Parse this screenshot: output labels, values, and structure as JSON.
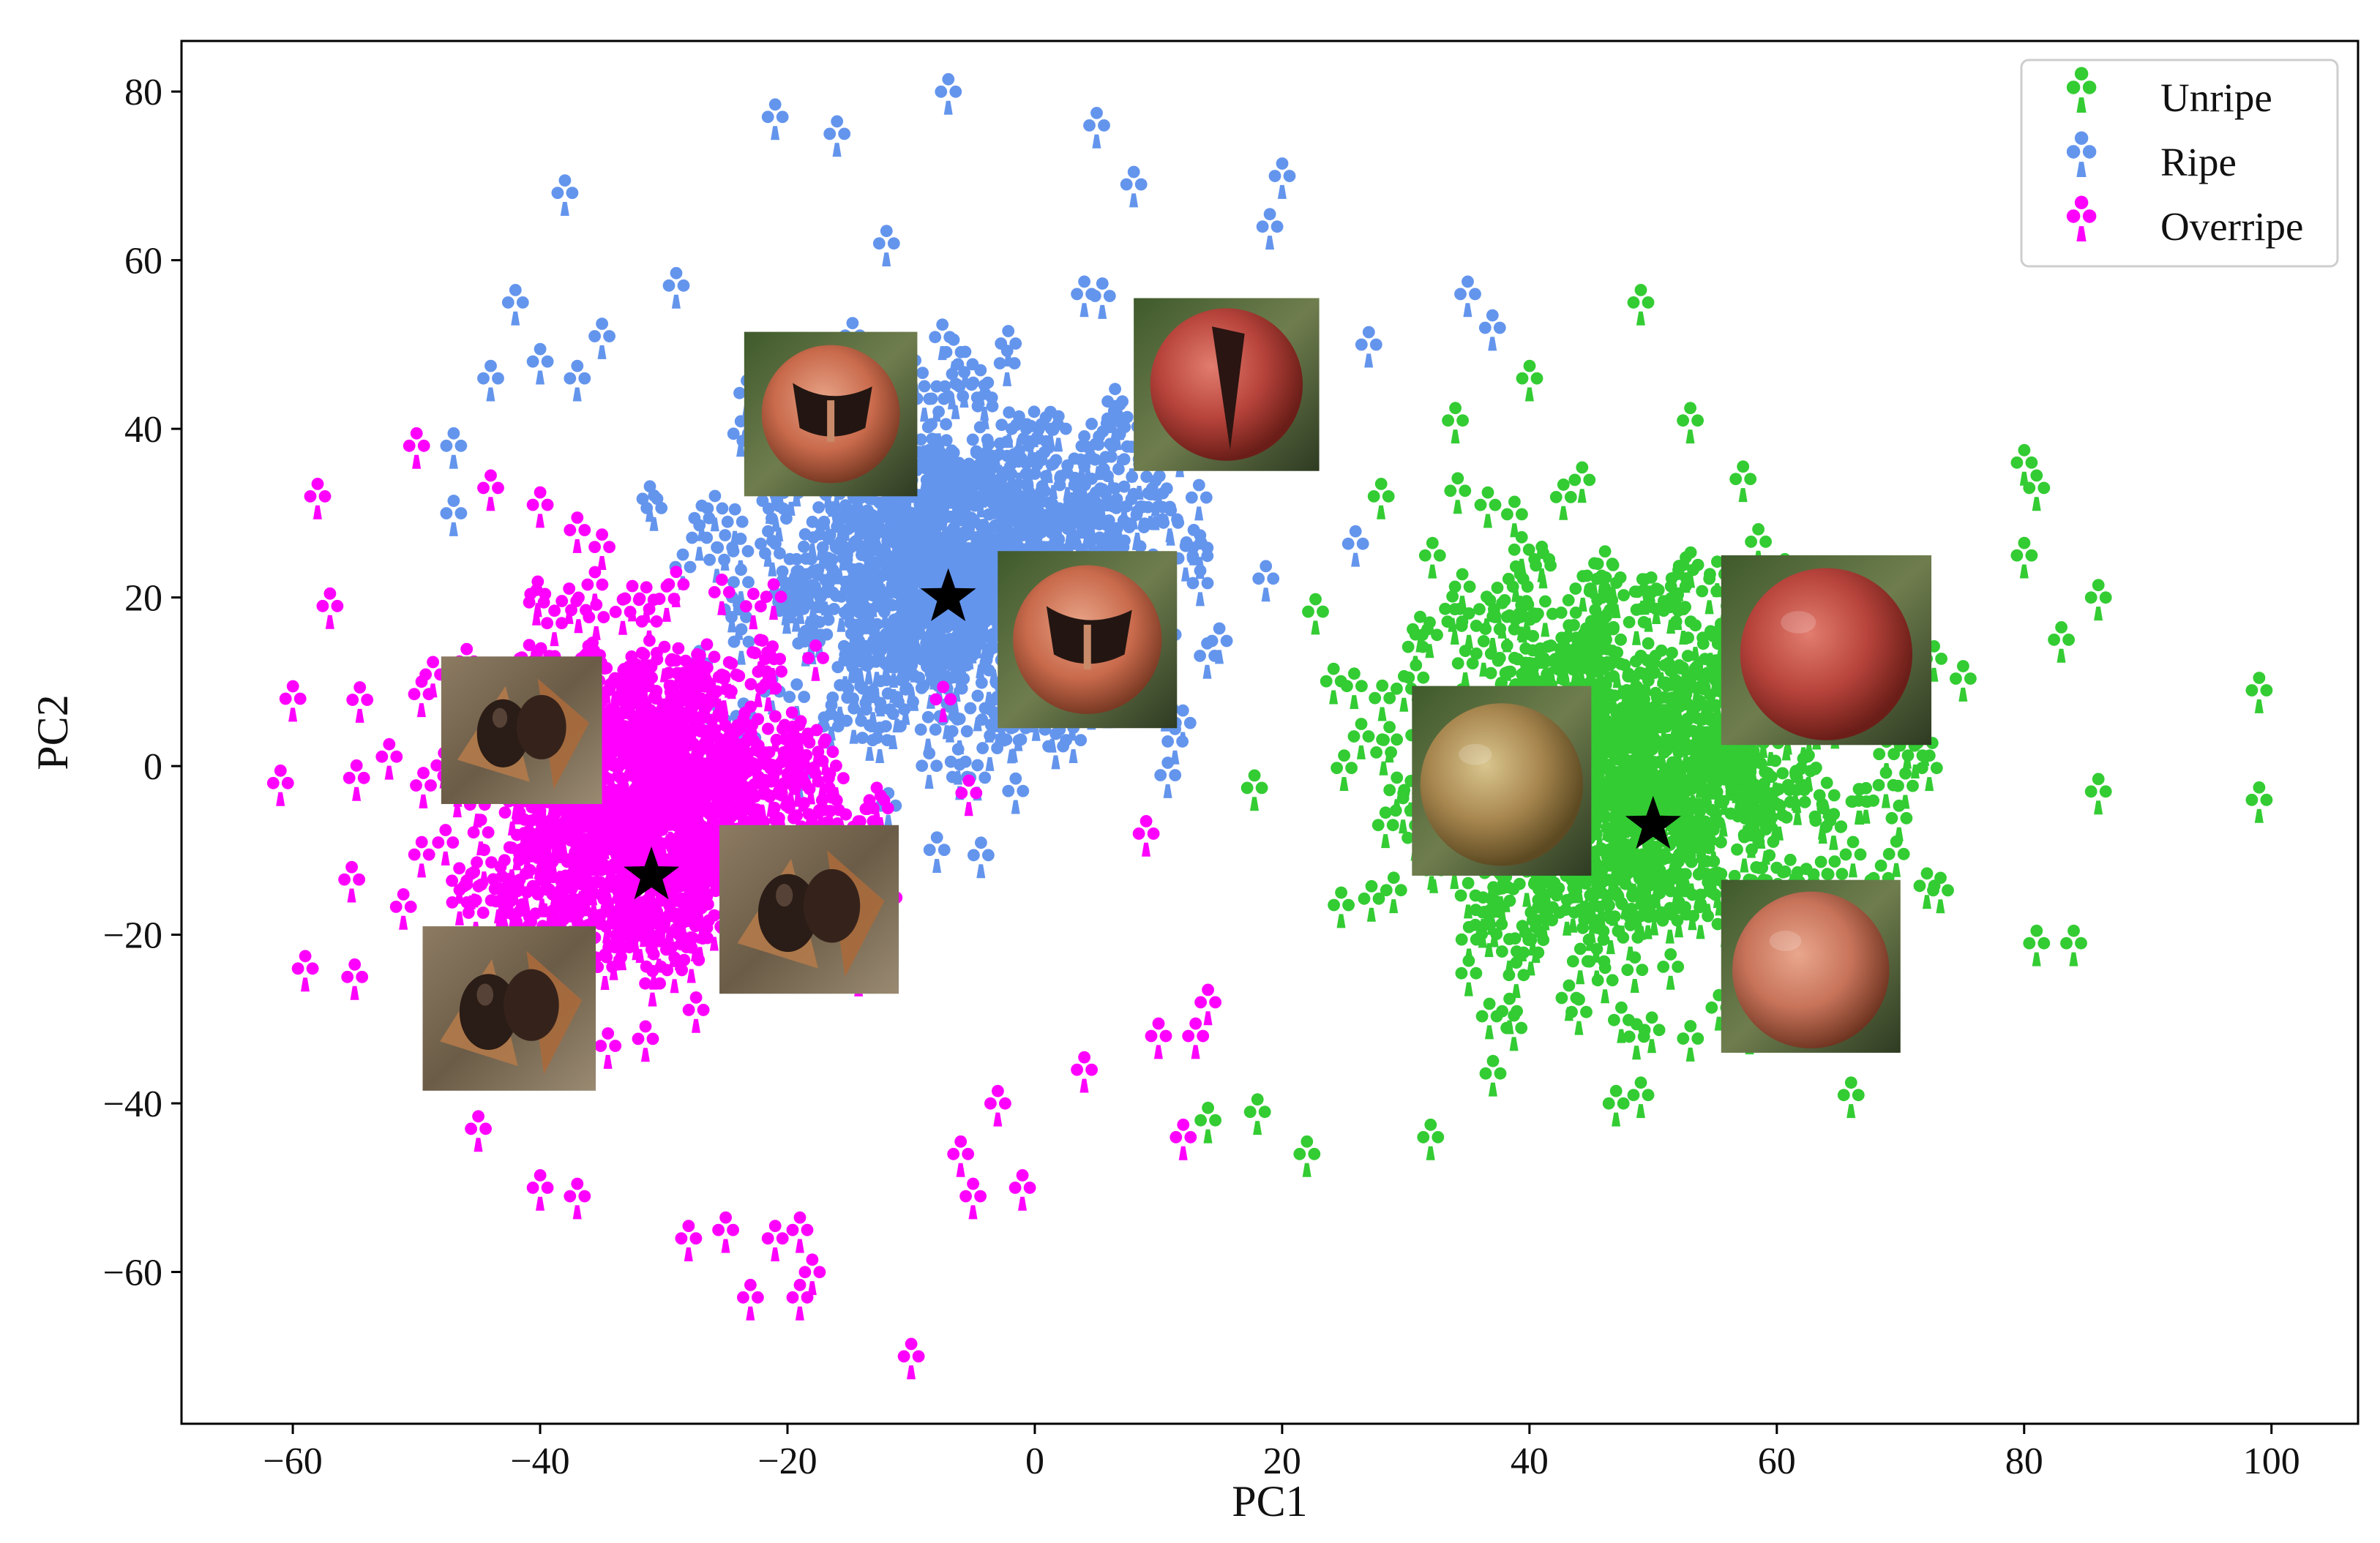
{
  "chart_data": {
    "type": "scatter",
    "title": "",
    "xlabel": "PC1",
    "ylabel": "PC2",
    "xlim": [
      -69,
      107
    ],
    "ylim": [
      -78,
      86
    ],
    "xticks": [
      -60,
      -40,
      -20,
      0,
      20,
      40,
      60,
      80,
      100
    ],
    "yticks": [
      -60,
      -40,
      -20,
      0,
      20,
      40,
      60,
      80
    ],
    "marker": "club",
    "grid": false,
    "legend_position": "top-right",
    "series": [
      {
        "name": "Unripe",
        "color": "#33cc33",
        "centroid": [
          50,
          -7
        ],
        "cluster": {
          "center": [
            48,
            -2
          ],
          "spread": [
            15,
            19
          ],
          "count": 700
        },
        "points": [
          [
            99,
            8
          ],
          [
            99,
            -5
          ],
          [
            86,
            -4
          ],
          [
            84,
            -22
          ],
          [
            81,
            -22
          ],
          [
            86,
            19
          ],
          [
            80,
            35
          ],
          [
            81,
            32
          ],
          [
            66,
            -40
          ],
          [
            22,
            -47
          ],
          [
            32,
            -45
          ],
          [
            47,
            -41
          ],
          [
            49,
            -40
          ],
          [
            14,
            -43
          ],
          [
            18,
            -42
          ],
          [
            80,
            24
          ],
          [
            83,
            14
          ],
          [
            28,
            31
          ],
          [
            34,
            40
          ],
          [
            40,
            45
          ],
          [
            49,
            54
          ],
          [
            53,
            40
          ]
        ]
      },
      {
        "name": "Ripe",
        "color": "#6495ed",
        "centroid": [
          -7,
          20
        ],
        "cluster": {
          "center": [
            -5,
            22
          ],
          "spread": [
            14,
            16
          ],
          "count": 700
        },
        "points": [
          [
            -7,
            79
          ],
          [
            -21,
            76
          ],
          [
            -16,
            74
          ],
          [
            5,
            75
          ],
          [
            8,
            68
          ],
          [
            20,
            69
          ],
          [
            19,
            63
          ],
          [
            -38,
            67
          ],
          [
            -42,
            54
          ],
          [
            -35,
            50
          ],
          [
            -29,
            56
          ],
          [
            35,
            55
          ],
          [
            37,
            51
          ],
          [
            -40,
            47
          ],
          [
            -44,
            45
          ],
          [
            -47,
            37
          ],
          [
            -47,
            29
          ],
          [
            -37,
            45
          ],
          [
            -12,
            61
          ],
          [
            4,
            55
          ],
          [
            10,
            52
          ],
          [
            27,
            49
          ]
        ]
      },
      {
        "name": "Overripe",
        "color": "#ff00ff",
        "centroid": [
          -31,
          -13
        ],
        "cluster": {
          "center": [
            -32,
            -5
          ],
          "spread": [
            12,
            16
          ],
          "count": 700
        },
        "points": [
          [
            -10,
            -71
          ],
          [
            -23,
            -64
          ],
          [
            -19,
            -64
          ],
          [
            -18,
            -61
          ],
          [
            -19,
            -56
          ],
          [
            -28,
            -57
          ],
          [
            -25,
            -56
          ],
          [
            -21,
            -57
          ],
          [
            -40,
            -51
          ],
          [
            -37,
            -52
          ],
          [
            -45,
            -44
          ],
          [
            -5,
            -52
          ],
          [
            -1,
            -51
          ],
          [
            -6,
            -47
          ],
          [
            -3,
            -41
          ],
          [
            -59,
            -25
          ],
          [
            -55,
            -26
          ],
          [
            -61,
            -3
          ],
          [
            -60,
            7
          ],
          [
            -57,
            18
          ],
          [
            -58,
            31
          ],
          [
            -50,
            37
          ],
          [
            -44,
            32
          ],
          [
            -40,
            30
          ],
          [
            -37,
            27
          ],
          [
            -35,
            25
          ],
          [
            12,
            -45
          ],
          [
            13,
            -33
          ],
          [
            10,
            -33
          ],
          [
            14,
            -29
          ],
          [
            9,
            -9
          ],
          [
            4,
            -37
          ]
        ]
      }
    ]
  },
  "insets": [
    {
      "name": "ripe-fruit-open-1",
      "label": "Ripe"
    },
    {
      "name": "ripe-fruit-split",
      "label": "Ripe"
    },
    {
      "name": "ripe-fruit-open-2",
      "label": "Ripe"
    },
    {
      "name": "overripe-fruit-1",
      "label": "Overripe"
    },
    {
      "name": "overripe-fruit-2",
      "label": "Overripe"
    },
    {
      "name": "overripe-fruit-3",
      "label": "Overripe"
    },
    {
      "name": "unripe-fruit-1",
      "label": "Unripe"
    },
    {
      "name": "unripe-fruit-2",
      "label": "Unripe"
    },
    {
      "name": "unripe-fruit-3",
      "label": "Unripe"
    }
  ]
}
